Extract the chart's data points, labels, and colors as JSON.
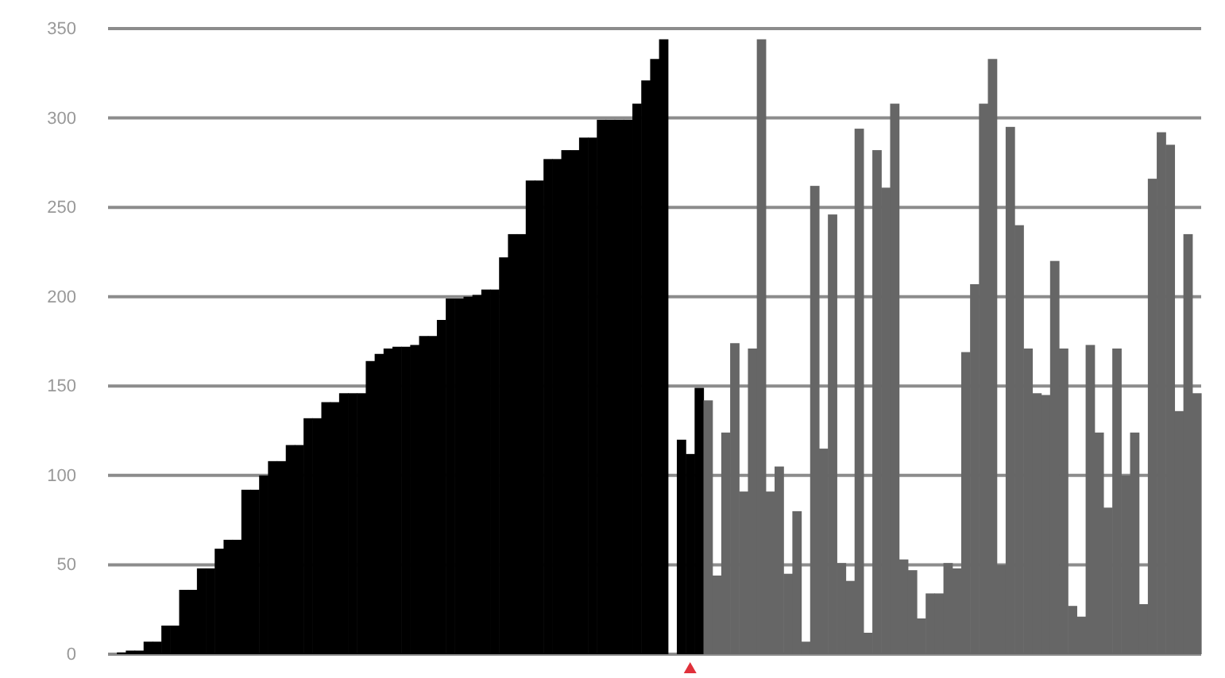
{
  "chart_data": {
    "type": "bar",
    "categories": [
      null,
      null,
      null,
      null,
      null,
      null,
      null,
      null,
      null,
      null,
      null,
      null,
      null,
      null,
      null,
      null,
      null,
      null,
      null,
      null,
      null,
      null,
      null,
      null,
      null,
      null,
      null,
      null,
      null,
      null,
      null,
      null,
      null,
      null,
      null,
      null,
      null,
      null,
      null,
      null,
      null,
      null,
      null,
      null,
      null,
      null,
      null,
      null,
      null,
      null,
      null,
      null,
      null,
      null,
      null,
      null,
      null,
      null,
      null,
      null,
      null,
      null,
      null,
      null,
      null,
      null,
      null,
      null,
      null,
      null,
      null,
      null,
      null,
      null,
      null,
      null,
      null,
      null,
      null,
      null,
      null,
      null,
      null,
      null,
      null,
      null,
      null,
      null,
      null,
      null,
      null,
      null,
      null,
      null,
      null,
      null,
      null,
      null,
      null,
      null,
      null,
      null,
      null,
      null,
      null,
      null,
      null,
      null,
      null,
      null,
      null,
      null,
      null,
      null,
      null,
      null,
      null,
      null,
      null,
      null,
      null,
      null,
      null
    ],
    "values": [
      0,
      1,
      2,
      2,
      7,
      7,
      16,
      16,
      36,
      36,
      48,
      48,
      59,
      64,
      64,
      92,
      92,
      100,
      108,
      108,
      117,
      117,
      132,
      132,
      141,
      141,
      146,
      146,
      146,
      164,
      168,
      171,
      172,
      172,
      173,
      178,
      178,
      187,
      199,
      199,
      200,
      201,
      204,
      204,
      222,
      235,
      235,
      265,
      265,
      277,
      277,
      282,
      282,
      289,
      289,
      299,
      299,
      299,
      299,
      308,
      321,
      333,
      344,
      0,
      120,
      112,
      149,
      142,
      44,
      124,
      174,
      91,
      171,
      344,
      91,
      105,
      45,
      80,
      7,
      262,
      115,
      246,
      51,
      41,
      294,
      12,
      282,
      261,
      308,
      53,
      47,
      20,
      34,
      34,
      51,
      48,
      169,
      207,
      308,
      333,
      50,
      295,
      240,
      171,
      146,
      145,
      220,
      171,
      27,
      21,
      173,
      124,
      82,
      171,
      100,
      124,
      28,
      266,
      292,
      285,
      136,
      235,
      146
    ],
    "colors": [
      "#000000",
      "#000000",
      "#000000",
      "#000000",
      "#000000",
      "#000000",
      "#000000",
      "#000000",
      "#000000",
      "#000000",
      "#000000",
      "#000000",
      "#000000",
      "#000000",
      "#000000",
      "#000000",
      "#000000",
      "#000000",
      "#000000",
      "#000000",
      "#000000",
      "#000000",
      "#000000",
      "#000000",
      "#000000",
      "#000000",
      "#000000",
      "#000000",
      "#000000",
      "#000000",
      "#000000",
      "#000000",
      "#000000",
      "#000000",
      "#000000",
      "#000000",
      "#000000",
      "#000000",
      "#000000",
      "#000000",
      "#000000",
      "#000000",
      "#000000",
      "#000000",
      "#000000",
      "#000000",
      "#000000",
      "#000000",
      "#000000",
      "#000000",
      "#000000",
      "#000000",
      "#000000",
      "#000000",
      "#000000",
      "#000000",
      "#000000",
      "#000000",
      "#000000",
      "#000000",
      "#000000",
      "#000000",
      "#000000",
      "#000000",
      "#000000",
      "#000000",
      "#000000",
      "#666666",
      "#666666",
      "#666666",
      "#666666",
      "#666666",
      "#666666",
      "#666666",
      "#666666",
      "#666666",
      "#666666",
      "#666666",
      "#666666",
      "#666666",
      "#666666",
      "#666666",
      "#666666",
      "#666666",
      "#666666",
      "#666666",
      "#666666",
      "#666666",
      "#666666",
      "#666666",
      "#666666",
      "#666666",
      "#666666",
      "#666666",
      "#666666",
      "#666666",
      "#666666",
      "#666666",
      "#666666",
      "#666666",
      "#666666",
      "#666666",
      "#666666",
      "#666666",
      "#666666",
      "#666666",
      "#666666",
      "#666666",
      "#666666",
      "#666666",
      "#666666",
      "#666666",
      "#666666",
      "#666666",
      "#666666",
      "#666666",
      "#666666",
      "#666666",
      "#666666",
      "#666666",
      "#666666",
      "#666666",
      "#666666"
    ],
    "ylim": [
      0,
      350
    ],
    "yticks": [
      0,
      50,
      100,
      150,
      200,
      250,
      300,
      350
    ],
    "grid": "y",
    "tick_labels": "y"
  }
}
